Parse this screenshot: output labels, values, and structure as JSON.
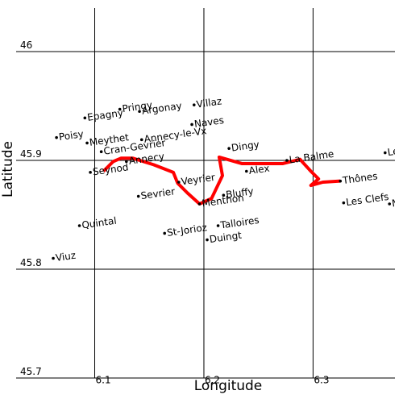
{
  "chart_data": {
    "type": "map",
    "xlabel": "Longitude",
    "ylabel": "Latitude",
    "xlim": [
      6.028,
      6.375
    ],
    "ylim": [
      45.7,
      46.04
    ],
    "xticks": [
      6.1,
      6.2,
      6.3
    ],
    "yticks": [
      45.7,
      45.8,
      45.9,
      46
    ],
    "grid": true,
    "places": {
      "names": [
        "Villaz",
        "Pringy",
        "Epagny",
        "Argonay",
        "Naves",
        "Annecy-le-Vx",
        "Poisy",
        "Meythet",
        "Cran-Gevrier",
        "Annecy",
        "Seynod",
        "Dingy",
        "La Balme",
        "Les Villards",
        "Alex",
        "Veyrier",
        "Thônes",
        "Sevrier",
        "Bluffy",
        "Menthon",
        "Les Clefs",
        "Manigod",
        "Quintal",
        "St-Jorioz",
        "Talloires",
        "Duingt",
        "Viuz"
      ],
      "lon": [
        6.191,
        6.123,
        6.091,
        6.141,
        6.189,
        6.143,
        6.065,
        6.093,
        6.106,
        6.129,
        6.096,
        6.223,
        6.276,
        6.366,
        6.239,
        6.177,
        6.325,
        6.14,
        6.218,
        6.196,
        6.328,
        6.37,
        6.086,
        6.164,
        6.213,
        6.203,
        6.062
      ],
      "lat": [
        45.951,
        45.947,
        45.939,
        45.945,
        45.933,
        45.919,
        45.921,
        45.916,
        45.908,
        45.899,
        45.889,
        45.911,
        45.9,
        45.907,
        45.89,
        45.88,
        45.881,
        45.867,
        45.868,
        45.86,
        45.861,
        45.86,
        45.84,
        45.833,
        45.84,
        45.827,
        45.81
      ],
      "color": "#000000"
    },
    "route": {
      "lon": [
        6.108,
        6.117,
        6.124,
        6.135,
        6.154,
        6.172,
        6.176,
        6.185,
        6.196,
        6.207,
        6.217,
        6.214,
        6.235,
        6.272,
        6.288,
        6.298,
        6.305,
        6.298,
        6.309,
        6.325
      ],
      "lat": [
        45.89,
        45.899,
        45.902,
        45.902,
        45.896,
        45.889,
        45.879,
        45.87,
        45.86,
        45.865,
        45.886,
        45.903,
        45.897,
        45.897,
        45.901,
        45.89,
        45.883,
        45.877,
        45.88,
        45.881
      ],
      "color": "#ff0000"
    }
  }
}
